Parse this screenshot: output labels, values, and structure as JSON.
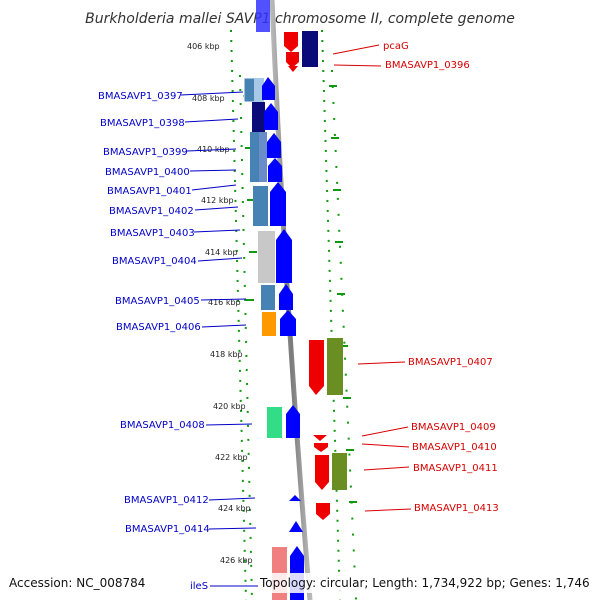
{
  "title": "Burkholderia mallei SAVP1 chromosome II, complete genome",
  "footer": {
    "accession": "Accession: NC_008784",
    "topology": "Topology: circular; Length: 1,734,922 bp; Genes: 1,746"
  },
  "kbp_ticks": [
    "406 kbp",
    "408 kbp",
    "410 kbp",
    "412 kbp",
    "414 kbp",
    "416 kbp",
    "418 kbp",
    "420 kbp",
    "422 kbp",
    "424 kbp",
    "426 kbp"
  ],
  "left_labels": [
    "BMASAVP1_0397",
    "BMASAVP1_0398",
    "BMASAVP1_0399",
    "BMASAVP1_0400",
    "BMASAVP1_0401",
    "BMASAVP1_0402",
    "BMASAVP1_0403",
    "BMASAVP1_0404",
    "BMASAVP1_0405",
    "BMASAVP1_0406",
    "BMASAVP1_0408",
    "BMASAVP1_0412",
    "BMASAVP1_0414",
    "ileS"
  ],
  "right_labels": [
    "pcaG",
    "BMASAVP1_0396",
    "BMASAVP1_0407",
    "BMASAVP1_0409",
    "BMASAVP1_0410",
    "BMASAVP1_0411",
    "BMASAVP1_0413"
  ],
  "colors": {
    "label_blue": "#0000c8",
    "label_red": "#d80000",
    "forward_gene": "#0000ff",
    "reverse_gene": "#ee0000",
    "navy_gene": "#0a0a78",
    "olive_gene": "#6b8e23",
    "steelblue_cog": "#4682b4",
    "grey_cog": "#c8c8c8",
    "orange_cog": "#ff9900",
    "green_cog": "#33dd88",
    "pink_cog": "#f08080",
    "backbone": "#8c8c8c",
    "dotted_ring": "#119911"
  }
}
